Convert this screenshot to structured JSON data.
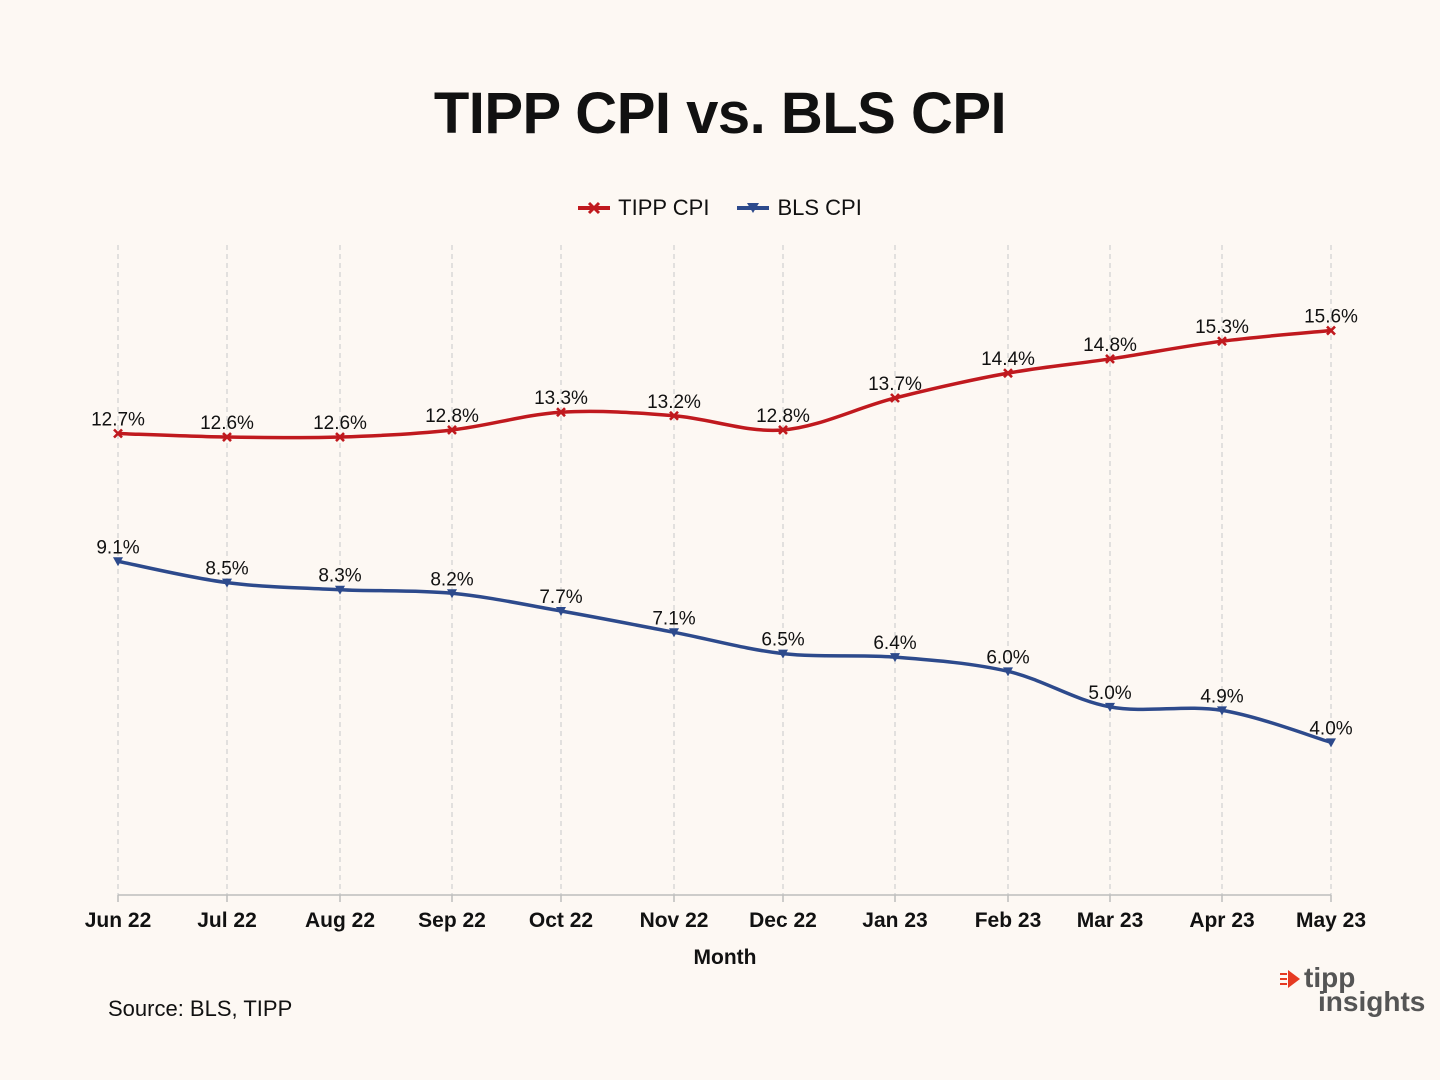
{
  "chart_data": {
    "type": "line",
    "title": "TIPP CPI vs. BLS CPI",
    "xlabel": "Month",
    "ylabel": "",
    "categories": [
      "Jun 22",
      "Jul 22",
      "Aug 22",
      "Sep 22",
      "Oct 22",
      "Nov 22",
      "Dec 22",
      "Jan 23",
      "Feb 23",
      "Mar 23",
      "Apr 23",
      "May 23"
    ],
    "series": [
      {
        "name": "TIPP CPI",
        "color": "#c0191e",
        "marker": "x",
        "values": [
          12.7,
          12.6,
          12.6,
          12.8,
          13.3,
          13.2,
          12.8,
          13.7,
          14.4,
          14.8,
          15.3,
          15.6
        ],
        "labels": [
          "12.7%",
          "12.6%",
          "12.6%",
          "12.8%",
          "13.3%",
          "13.2%",
          "12.8%",
          "13.7%",
          "14.4%",
          "14.8%",
          "15.3%",
          "15.6%"
        ]
      },
      {
        "name": "BLS CPI",
        "color": "#2d4a8c",
        "marker": "triangle-down",
        "values": [
          9.1,
          8.5,
          8.3,
          8.2,
          7.7,
          7.1,
          6.5,
          6.4,
          6.0,
          5.0,
          4.9,
          4.0
        ],
        "labels": [
          "9.1%",
          "8.5%",
          "8.3%",
          "8.2%",
          "7.7%",
          "7.1%",
          "6.5%",
          "6.4%",
          "6.0%",
          "5.0%",
          "4.9%",
          "4.0%"
        ]
      }
    ],
    "ylim": [
      -0.3,
      18.0
    ],
    "grid": "vertical dashed",
    "legend": "top-center",
    "smooth": true
  },
  "source": "Source:  BLS, TIPP",
  "logo": {
    "line1": "tipp",
    "line2": "insights"
  }
}
